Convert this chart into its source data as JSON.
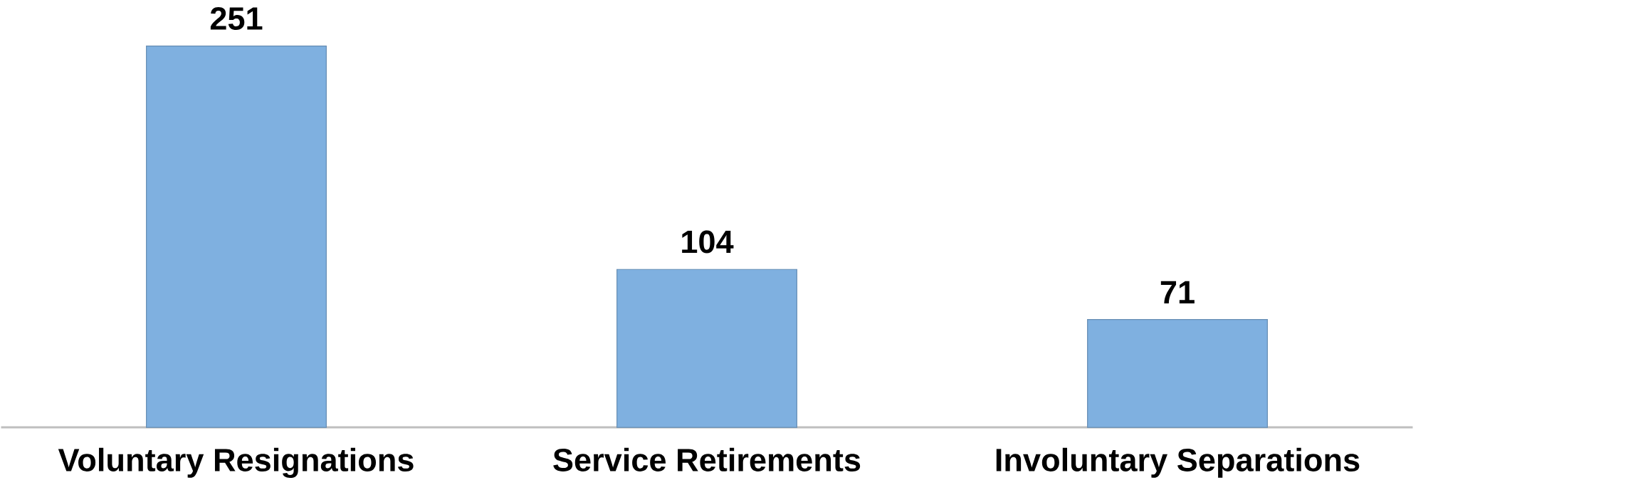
{
  "chart_data": {
    "type": "bar",
    "categories": [
      "Voluntary Resignations",
      "Service Retirements",
      "Involuntary Separations"
    ],
    "values": [
      251,
      104,
      71
    ],
    "color": "#7fb0e0",
    "data_labels": true
  }
}
